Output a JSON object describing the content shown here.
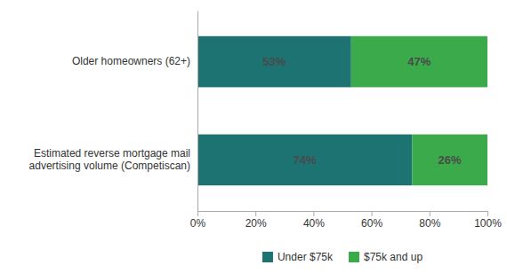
{
  "chart_data": {
    "type": "bar",
    "orientation": "horizontal",
    "stacked": true,
    "data_labels": true,
    "legend": "bottom",
    "categories": [
      "Older homeowners (62+)",
      "Estimated reverse mortgage mail\nadvertising volume (Competiscan)"
    ],
    "series": [
      {
        "name": "Under $75k",
        "color": "#1d7272",
        "values": [
          53,
          74
        ],
        "value_labels": [
          "53%",
          "74%"
        ]
      },
      {
        "name": "$75k and up",
        "color": "#3aaa4a",
        "values": [
          47,
          26
        ],
        "value_labels": [
          "47%",
          "26%"
        ]
      }
    ],
    "xlim": [
      0,
      100
    ],
    "xticks": [
      {
        "value": 0,
        "label": "0%"
      },
      {
        "value": 20,
        "label": "20%"
      },
      {
        "value": 40,
        "label": "40%"
      },
      {
        "value": 60,
        "label": "60%"
      },
      {
        "value": 80,
        "label": "80%"
      },
      {
        "value": 100,
        "label": "100%"
      }
    ],
    "grid": false
  }
}
